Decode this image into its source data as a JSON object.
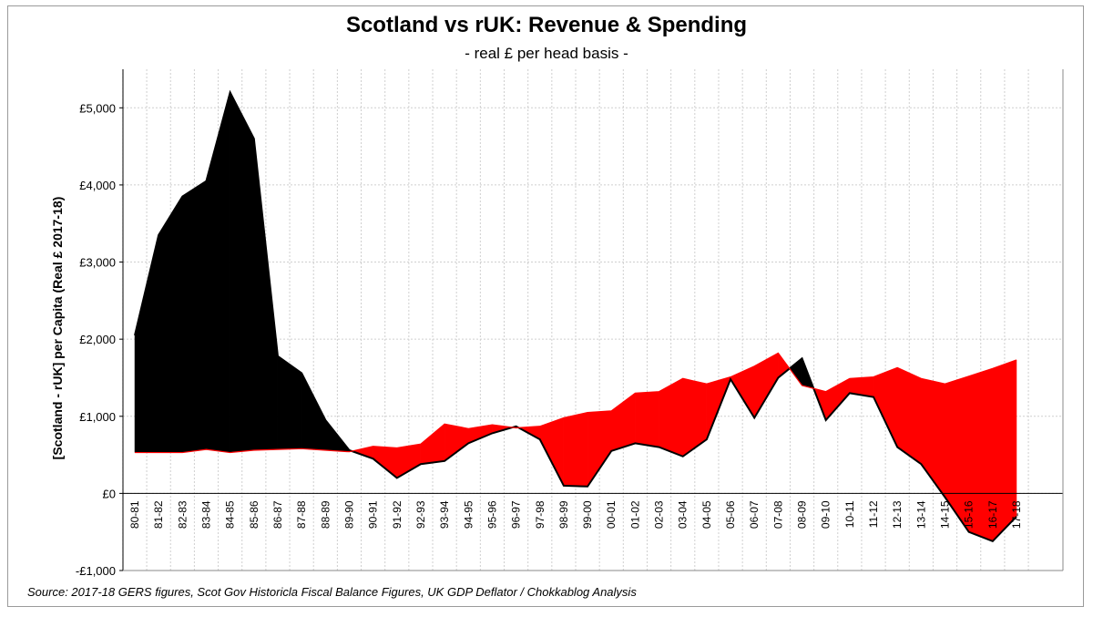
{
  "chart_data": {
    "type": "area",
    "title": "Scotland vs rUK: Revenue & Spending",
    "subtitle": "- real £ per head basis -",
    "ylabel": "[Scotland - rUK] per Capita (Real £ 2017-18)",
    "xlabel": "",
    "ylim": [
      -1000,
      5500
    ],
    "yticks": [
      -1000,
      0,
      1000,
      2000,
      3000,
      4000,
      5000
    ],
    "ytick_labels": [
      "-£1,000",
      "£0",
      "£1,000",
      "£2,000",
      "£3,000",
      "£4,000",
      "£5,000"
    ],
    "categories": [
      "80-81",
      "81-82",
      "82-83",
      "83-84",
      "84-85",
      "85-86",
      "86-87",
      "87-88",
      "88-89",
      "89-90",
      "90-91",
      "91-92",
      "92-93",
      "93-94",
      "94-95",
      "95-96",
      "96-97",
      "97-98",
      "98-99",
      "99-00",
      "00-01",
      "01-02",
      "02-03",
      "03-04",
      "04-05",
      "05-06",
      "06-07",
      "07-08",
      "08-09",
      "09-10",
      "10-11",
      "11-12",
      "12-13",
      "13-14",
      "14-15",
      "15-16",
      "16-17",
      "17-18"
    ],
    "series": [
      {
        "name": "Revenue",
        "color": "#000000",
        "values": [
          2050,
          3350,
          3850,
          4050,
          5200,
          4600,
          1780,
          1560,
          950,
          560,
          450,
          200,
          380,
          420,
          650,
          780,
          870,
          700,
          100,
          90,
          550,
          650,
          600,
          480,
          700,
          1480,
          980,
          1500,
          1750,
          950,
          1300,
          1250,
          600,
          380,
          -50,
          -500,
          -620,
          -300
        ]
      },
      {
        "name": "Spending",
        "color": "#ff0000",
        "values": [
          530,
          530,
          530,
          570,
          530,
          560,
          570,
          580,
          560,
          540,
          610,
          590,
          640,
          900,
          840,
          890,
          850,
          870,
          980,
          1050,
          1070,
          1300,
          1320,
          1490,
          1420,
          1510,
          1650,
          1820,
          1400,
          1320,
          1490,
          1510,
          1630,
          1490,
          1420,
          1520,
          1620,
          1730
        ]
      }
    ],
    "grid": true,
    "legend": "none",
    "source": "Source:  2017-18 GERS figures, Scot Gov Historicla Fiscal Balance Figures, UK GDP Deflator / Chokkablog Analysis"
  }
}
